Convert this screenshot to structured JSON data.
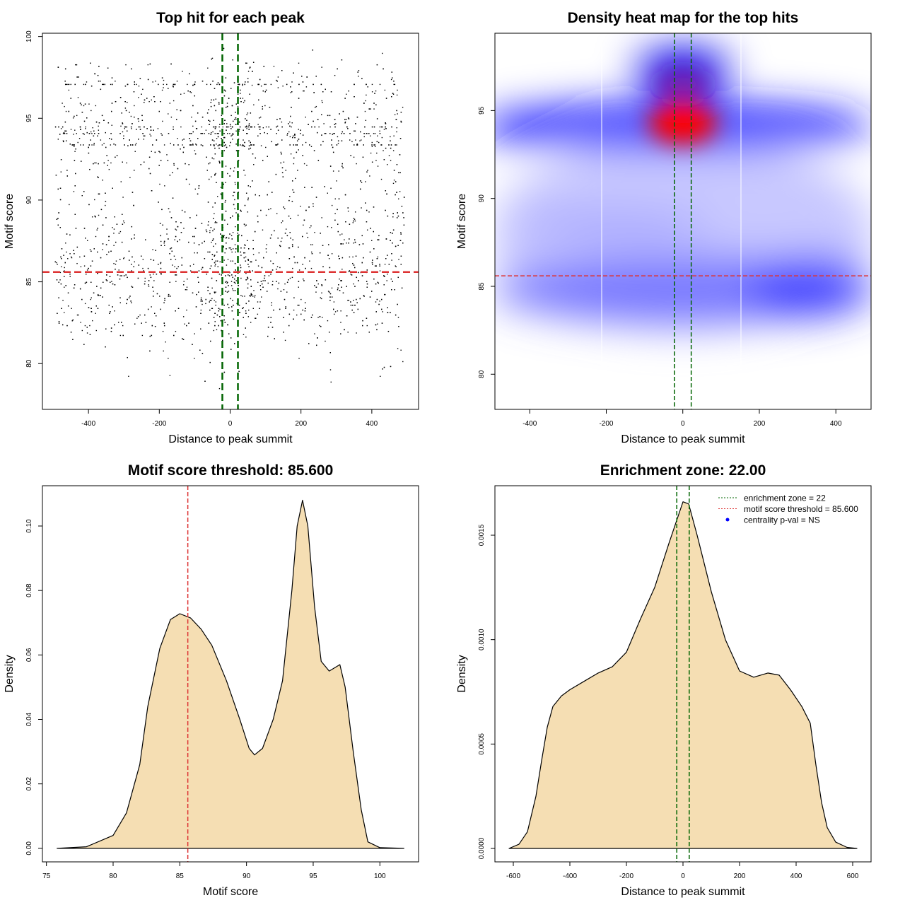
{
  "chart_data": [
    {
      "type": "scatter",
      "title": "Top hit for each peak",
      "xlabel": "Distance to peak summit",
      "ylabel": "Motif score",
      "xlim": [
        -530,
        532
      ],
      "ylim": [
        77.2,
        100.2
      ],
      "xticks": [
        -400,
        -200,
        0,
        200,
        400
      ],
      "yticks": [
        80,
        85,
        90,
        95,
        100
      ],
      "vlines": {
        "values": [
          -22,
          22
        ],
        "color": "#006400",
        "style": "dashed"
      },
      "hline": {
        "value": 85.6,
        "color": "#dd3333",
        "style": "dashed"
      },
      "point_color": "#000000"
    },
    {
      "type": "heatmap",
      "title": "Density heat map for the top hits",
      "xlabel": "Distance to peak summit",
      "ylabel": "Motif score",
      "xlim": [
        -491,
        492
      ],
      "ylim": [
        78.0,
        99.4
      ],
      "xticks": [
        -400,
        -200,
        0,
        200,
        400
      ],
      "yticks": [
        80,
        85,
        90,
        95
      ],
      "white_vlines": [
        -212,
        152
      ],
      "vlines": {
        "values": [
          -22,
          22
        ],
        "color": "#006400",
        "style": "dashed"
      },
      "hline": {
        "value": 85.6,
        "color": "#dd3333",
        "style": "dashed"
      },
      "colors": [
        "#ffffff",
        "#0000ff",
        "#ff0000"
      ]
    },
    {
      "type": "area",
      "title": "Motif score threshold: 85.600",
      "xlabel": "Motif score",
      "ylabel": "Density",
      "xlim": [
        74.7,
        102.9
      ],
      "ylim": [
        -0.0042,
        0.1125
      ],
      "xticks": [
        75,
        80,
        85,
        90,
        95,
        100
      ],
      "yticks": [
        "0.00",
        "0.02",
        "0.04",
        "0.06",
        "0.08",
        "0.10"
      ],
      "fill": "#f5deb3",
      "vline": {
        "value": 85.6,
        "color": "#dd3333",
        "style": "dashed"
      },
      "x": [
        75.8,
        78,
        80,
        81,
        82,
        82.6,
        83.5,
        84.3,
        85.0,
        85.8,
        86.6,
        87.4,
        88.5,
        89.5,
        90.2,
        90.6,
        91.2,
        92,
        92.7,
        93.4,
        93.8,
        94.2,
        94.6,
        95.1,
        95.6,
        96.2,
        96.6,
        97.0,
        97.4,
        98,
        98.6,
        99.1,
        100,
        101.8
      ],
      "y": [
        0.0,
        0.0005,
        0.004,
        0.011,
        0.026,
        0.044,
        0.062,
        0.071,
        0.0728,
        0.0715,
        0.068,
        0.063,
        0.052,
        0.04,
        0.031,
        0.029,
        0.031,
        0.04,
        0.052,
        0.08,
        0.1,
        0.108,
        0.1,
        0.075,
        0.058,
        0.055,
        0.056,
        0.057,
        0.05,
        0.03,
        0.012,
        0.002,
        0.0002,
        0.0
      ]
    },
    {
      "type": "area",
      "title": "Enrichment zone: 22.00",
      "xlabel": "Distance to peak summit",
      "ylabel": "Density",
      "xlim": [
        -665,
        665
      ],
      "ylim": [
        -6.43e-05,
        0.001737
      ],
      "xticks": [
        -600,
        -400,
        -200,
        0,
        200,
        400,
        600
      ],
      "yticks": [
        "0.0000",
        "0.0005",
        "0.0010",
        "0.0015"
      ],
      "fill": "#f5deb3",
      "vlines": {
        "values": [
          -22,
          22
        ],
        "color": "#006400",
        "style": "dashed"
      },
      "x": [
        -615,
        -580,
        -550,
        -520,
        -500,
        -480,
        -460,
        -430,
        -400,
        -350,
        -300,
        -250,
        -200,
        -150,
        -100,
        -50,
        0,
        20,
        50,
        100,
        150,
        200,
        250,
        300,
        340,
        380,
        420,
        450,
        470,
        490,
        510,
        540,
        580,
        615
      ],
      "y": [
        0.0,
        2e-05,
        8e-05,
        0.00025,
        0.00042,
        0.00058,
        0.00068,
        0.00073,
        0.00076,
        0.0008,
        0.00084,
        0.00087,
        0.00094,
        0.0011,
        0.00125,
        0.00146,
        0.00166,
        0.00165,
        0.0015,
        0.00123,
        0.001,
        0.00085,
        0.00082,
        0.00084,
        0.00083,
        0.00076,
        0.00068,
        0.0006,
        0.0004,
        0.00022,
        0.0001,
        3e-05,
        5e-06,
        0.0
      ],
      "legend": {
        "position": "top-right",
        "entries": [
          {
            "label": "enrichment zone = 22",
            "color": "#006400",
            "style": "dotted"
          },
          {
            "label": "motif score threshold = 85.600",
            "color": "#dd3333",
            "style": "dotted"
          },
          {
            "label": "centrality p-val = NS",
            "color": "#0000ff",
            "style": "point"
          }
        ]
      }
    }
  ]
}
